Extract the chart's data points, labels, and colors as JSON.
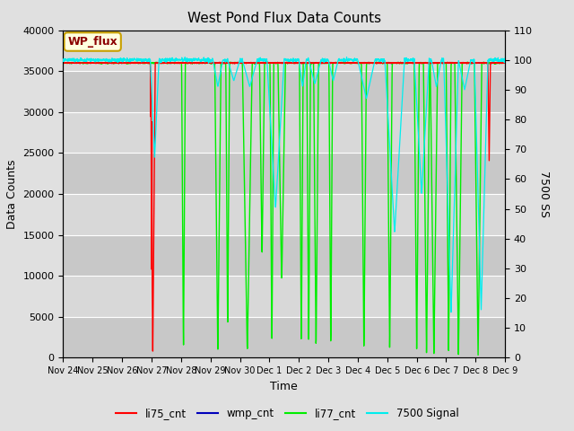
{
  "title": "West Pond Flux Data Counts",
  "xlabel": "Time",
  "ylabel_left": "Data Counts",
  "ylabel_right": "7500 SS",
  "annotation_text": "WP_flux",
  "ylim_left": [
    0,
    40000
  ],
  "ylim_right": [
    0,
    110
  ],
  "yticks_left": [
    0,
    5000,
    10000,
    15000,
    20000,
    25000,
    30000,
    35000,
    40000
  ],
  "yticks_right": [
    0,
    10,
    20,
    30,
    40,
    50,
    60,
    70,
    80,
    90,
    100,
    110
  ],
  "line_colors": {
    "li75_cnt": "#ff0000",
    "wmp_cnt": "#0000bb",
    "li77_cnt": "#00ee00",
    "signal7500": "#00eeee"
  },
  "legend_labels": [
    "li75_cnt",
    "wmp_cnt",
    "li77_cnt",
    "7500 Signal"
  ],
  "bg_color": "#e0e0e0",
  "plot_bg_color": "#d0d0d0",
  "tick_labels": [
    "Nov 24",
    "Nov 25",
    "Nov 26",
    "Nov 27",
    "Nov 28",
    "Nov 29",
    "Nov 30",
    "Dec 1",
    "Dec 2",
    "Dec 3",
    "Dec 4",
    "Dec 5",
    "Dec 6",
    "Dec 7",
    "Dec 8",
    "Dec 9"
  ],
  "total_hours": 360,
  "base_count": 36000,
  "base_signal": 100
}
